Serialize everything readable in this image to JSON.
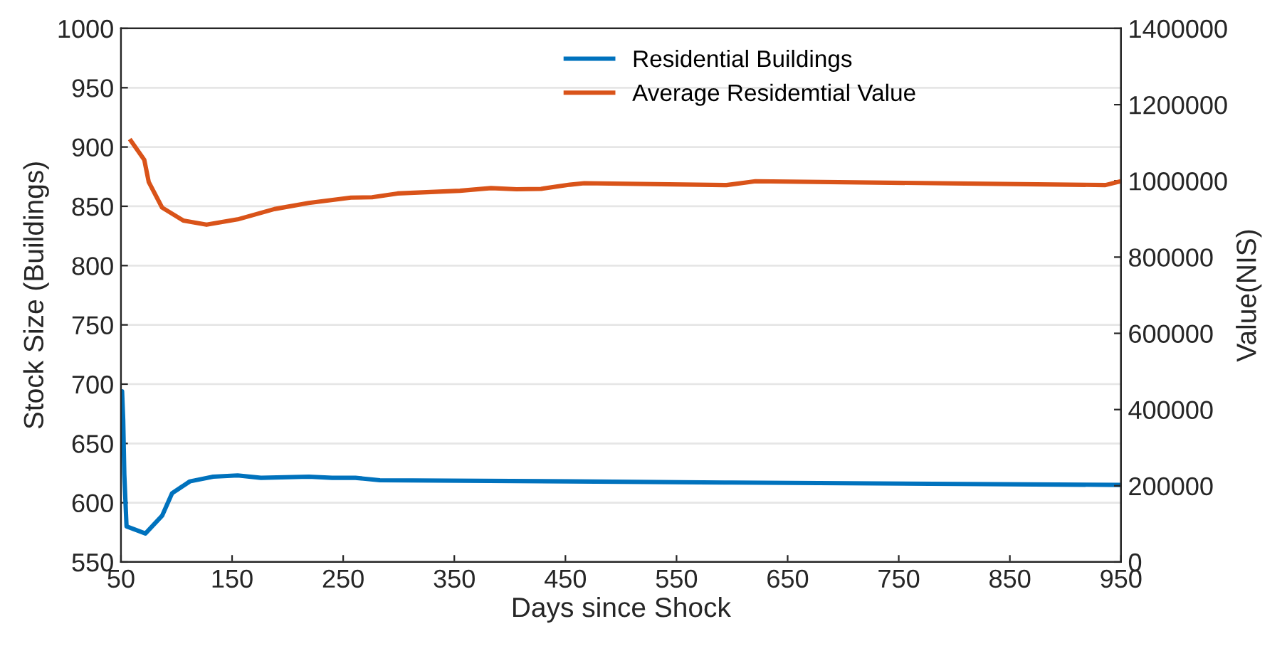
{
  "chart_data": {
    "type": "line",
    "xlabel": "Days since Shock",
    "ylabel": "Stock Size (Buildings)",
    "y2label": "Value(NIS)",
    "xlim": [
      50,
      950
    ],
    "xticks": [
      50,
      150,
      250,
      350,
      450,
      550,
      650,
      750,
      850,
      950
    ],
    "ylim": [
      550,
      1000
    ],
    "yticks": [
      550,
      600,
      650,
      700,
      750,
      800,
      850,
      900,
      950,
      1000
    ],
    "y2lim": [
      0,
      1400000
    ],
    "y2ticks": [
      0,
      200000,
      400000,
      600000,
      800000,
      1000000,
      1200000,
      1400000
    ],
    "grid": "y",
    "legend": "top",
    "line_style": "solid",
    "marker": "none",
    "series": [
      {
        "name": "Residential Buildings",
        "color": "#0072bd",
        "axis": "y",
        "x": [
          50,
          51,
          52,
          53,
          55,
          72,
          87,
          96,
          112,
          133,
          155,
          176,
          219,
          240,
          261,
          283,
          454,
          600,
          950
        ],
        "values": [
          694,
          694,
          670,
          624,
          580,
          574,
          589,
          608,
          618,
          622,
          623,
          621,
          622,
          621,
          621,
          619,
          618,
          617,
          615
        ]
      },
      {
        "name": "Average Residemtial Value",
        "color": "#d95319",
        "axis": "y2",
        "x": [
          59,
          71,
          75,
          87,
          106,
          127,
          155,
          188,
          219,
          257,
          276,
          299,
          355,
          383,
          406,
          428,
          454,
          467,
          595,
          621,
          936,
          950
        ],
        "values": [
          1105000,
          1055000,
          997000,
          930000,
          896000,
          885000,
          899000,
          926000,
          942000,
          956000,
          957000,
          967000,
          974000,
          981000,
          978000,
          979000,
          990000,
          994000,
          989000,
          999000,
          989000,
          999000
        ]
      }
    ]
  }
}
